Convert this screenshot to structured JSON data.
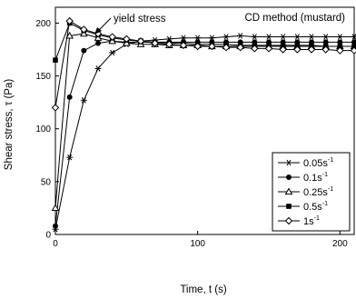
{
  "chart_data": {
    "type": "line",
    "title": "",
    "annotation_method": "CD method (mustard)",
    "annotation_yield": "yield stress",
    "xlabel": "Time, t (s)",
    "ylabel": "Shear stress, τ (Pa)",
    "xlim": [
      0,
      210
    ],
    "ylim": [
      0,
      215
    ],
    "xticks": [
      0,
      100,
      200
    ],
    "yticks": [
      0,
      50,
      100,
      150,
      200
    ],
    "grid": false,
    "legend_position": "bottom-right",
    "series": [
      {
        "name": "0.05s",
        "sup": "-1",
        "marker": "asterisk",
        "x": [
          0,
          10,
          20,
          30,
          40,
          50,
          60,
          70,
          80,
          90,
          100,
          110,
          120,
          130,
          140,
          150,
          160,
          170,
          180,
          190,
          200,
          210
        ],
        "y": [
          5,
          73,
          127,
          157,
          172,
          180,
          183,
          184,
          185,
          186,
          186,
          186,
          187,
          188,
          187,
          187,
          187,
          187,
          187,
          187,
          187,
          187
        ]
      },
      {
        "name": "0.1s",
        "sup": "-1",
        "marker": "filled-circle",
        "x": [
          0,
          10,
          20,
          30,
          40,
          50,
          60,
          70,
          80,
          90,
          100,
          110,
          120,
          130,
          140,
          150,
          160,
          170,
          180,
          190,
          200,
          210
        ],
        "y": [
          8,
          130,
          174,
          181,
          183,
          182,
          182,
          182,
          182,
          182,
          182,
          182,
          182,
          182,
          182,
          182,
          182,
          182,
          182,
          182,
          182,
          182
        ]
      },
      {
        "name": "0.25s",
        "sup": "-1",
        "marker": "open-triangle",
        "x": [
          0,
          10,
          20,
          30,
          40,
          50,
          60,
          70,
          80,
          90,
          100,
          110,
          120,
          130,
          140,
          150,
          160,
          170,
          180,
          190,
          200,
          210
        ],
        "y": [
          25,
          188,
          190,
          186,
          183,
          181,
          180,
          180,
          179,
          179,
          179,
          178,
          178,
          178,
          178,
          178,
          178,
          178,
          178,
          178,
          178,
          178
        ]
      },
      {
        "name": "0.5s",
        "sup": "-1",
        "marker": "filled-square",
        "x": [
          0,
          10,
          20,
          30,
          40,
          50,
          60,
          70,
          80,
          90,
          100,
          110,
          120,
          130,
          140,
          150,
          160,
          170,
          180,
          190,
          200,
          210
        ],
        "y": [
          165,
          200,
          193,
          189,
          186,
          184,
          183,
          182,
          181,
          181,
          180,
          180,
          180,
          179,
          179,
          179,
          179,
          179,
          179,
          178,
          178,
          178
        ]
      },
      {
        "name": "1s",
        "sup": "-1",
        "marker": "open-diamond",
        "x": [
          0,
          10,
          20,
          30,
          40,
          50,
          60,
          70,
          80,
          90,
          100,
          110,
          120,
          130,
          140,
          150,
          160,
          170,
          180,
          190,
          200,
          210
        ],
        "y": [
          120,
          202,
          194,
          190,
          187,
          185,
          183,
          181,
          180,
          179,
          178,
          178,
          177,
          177,
          176,
          176,
          175,
          175,
          175,
          175,
          174,
          174
        ]
      }
    ]
  }
}
